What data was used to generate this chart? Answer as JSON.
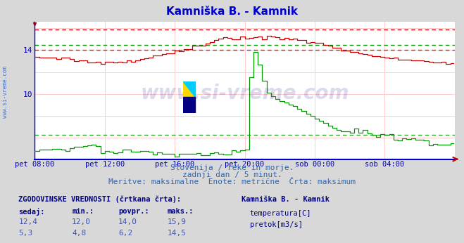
{
  "title": "Kamniška B. - Kamnik",
  "title_color": "#0000cc",
  "bg_color": "#d8d8d8",
  "plot_bg_color": "#ffffff",
  "yticks": [
    10,
    14
  ],
  "ymin": 4.0,
  "ymax": 16.6,
  "xmin": 0,
  "xmax": 288,
  "xlabel_color": "#0000aa",
  "ylabel_color": "#0000aa",
  "grid_color_v": "#ffcccc",
  "grid_color_h": "#ffcccc",
  "axis_color": "#0000cc",
  "temp_line_color": "#cc0000",
  "flow_line_color": "#009900",
  "temp_max_dashed": 15.9,
  "temp_avg_dashed": 14.0,
  "flow_max_dashed": 14.5,
  "flow_avg_dashed": 6.2,
  "x_tick_labels": [
    "pet 08:00",
    "pet 12:00",
    "pet 16:00",
    "pet 20:00",
    "sob 00:00",
    "sob 04:00"
  ],
  "x_tick_positions": [
    0,
    48,
    96,
    144,
    192,
    240
  ],
  "subtitle1": "Slovenija / reke in morje.",
  "subtitle2": "zadnji dan / 5 minut.",
  "subtitle3": "Meritve: maksimalne  Enote: metrične  Črta: maksimum",
  "footer_title": "ZGODOVINSKE VREDNOSTI (črtkana črta):",
  "footer_headers": [
    "sedaj:",
    "min.:",
    "povpr.:",
    "maks.:"
  ],
  "footer_vals_temp": [
    "12,4",
    "12,0",
    "14,0",
    "15,9"
  ],
  "footer_vals_flow": [
    "5,3",
    "4,8",
    "6,2",
    "14,5"
  ],
  "legend_title": "Kamniška B. - Kamnik",
  "footer_label_temp": "temperatura[C]",
  "footer_label_flow": "pretok[m3/s]",
  "watermark": "www.si-vreme.com",
  "watermark_color": "#333399",
  "watermark_alpha": 0.18,
  "sidebar_text": "www.si-vreme.com",
  "sidebar_color": "#3366cc"
}
